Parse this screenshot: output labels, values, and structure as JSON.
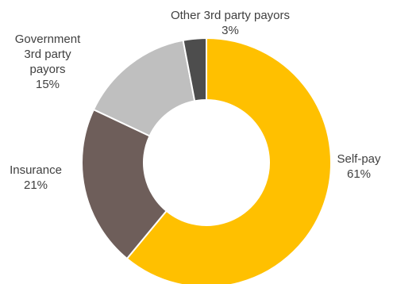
{
  "chart_data": {
    "type": "pie",
    "donut": true,
    "slices": [
      {
        "name": "Self-pay",
        "value": 61,
        "value_label": "61%",
        "color": "#FFC000"
      },
      {
        "name": "Insurance",
        "value": 21,
        "value_label": "21%",
        "color": "#6E5E5A"
      },
      {
        "name": "Government 3rd party payors",
        "name_lines": [
          "Government",
          "3rd party",
          "payors"
        ],
        "value": 15,
        "value_label": "15%",
        "color": "#BFBFBF"
      },
      {
        "name": "Other 3rd party payors",
        "value": 3,
        "value_label": "3%",
        "color": "#4D4D4D"
      }
    ],
    "start_angle": "12 o'clock",
    "direction": "clockwise",
    "legend": "none"
  }
}
